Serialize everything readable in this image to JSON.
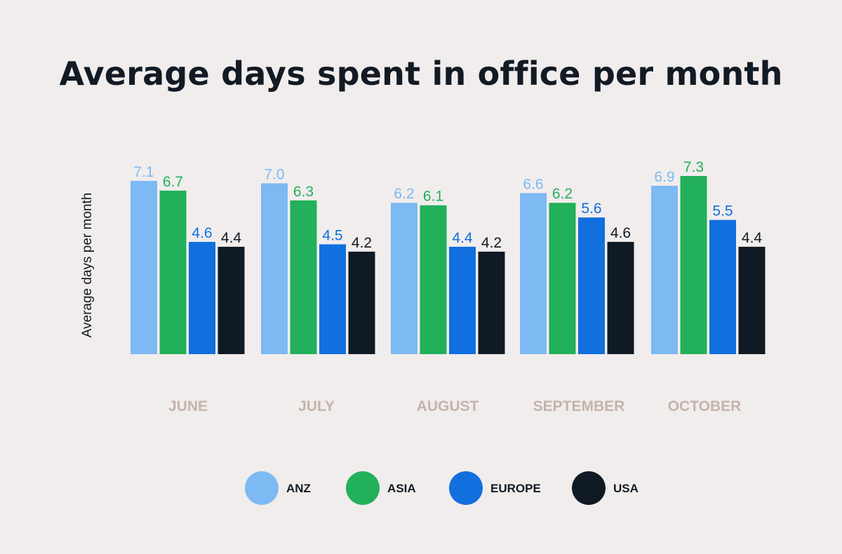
{
  "chart_data": {
    "type": "bar",
    "title": "Average days spent in office per month",
    "xlabel": "",
    "ylabel": "Average days per month",
    "categories": [
      "JUNE",
      "JULY",
      "AUGUST",
      "SEPTEMBER",
      "OCTOBER"
    ],
    "series": [
      {
        "name": "ANZ",
        "color": "#7db9f2",
        "values": [
          7.1,
          7.0,
          6.2,
          6.6,
          6.9
        ]
      },
      {
        "name": "ASIA",
        "color": "#22b05a",
        "values": [
          6.7,
          6.3,
          6.1,
          6.2,
          7.3
        ]
      },
      {
        "name": "EUROPE",
        "color": "#116fde",
        "values": [
          4.6,
          4.5,
          4.4,
          5.6,
          5.5
        ]
      },
      {
        "name": "USA",
        "color": "#0f1a24",
        "values": [
          4.4,
          4.2,
          4.2,
          4.6,
          4.4
        ]
      }
    ],
    "ylim": [
      0,
      7.3
    ],
    "grid": false,
    "legend": "bottom",
    "category_label_color": "#c4b4ab",
    "background": "#f1eded"
  }
}
